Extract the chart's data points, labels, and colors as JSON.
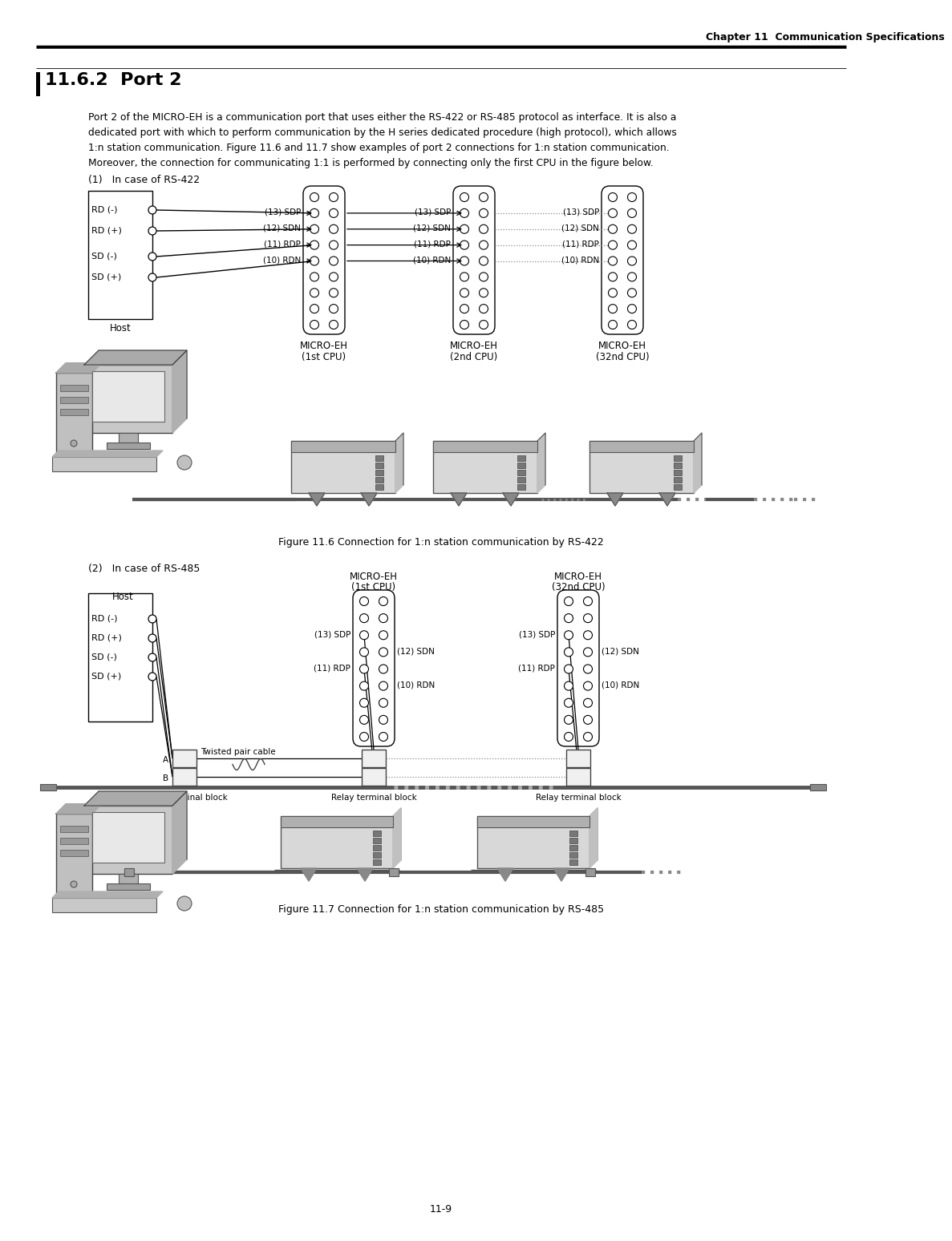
{
  "page_bg": "#ffffff",
  "header_text": "Chapter 11  Communication Specifications",
  "section_title": "11.6.2  Port 2",
  "body_text_lines": [
    "Port 2 of the MICRO-EH is a communication port that uses either the RS-422 or RS-485 protocol as interface. It is also a",
    "dedicated port with which to perform communication by the H series dedicated procedure (high protocol), which allows",
    "1:n station communication. Figure 11.6 and 11.7 show examples of port 2 connections for 1:n station communication.",
    "Moreover, the connection for communicating 1:1 is performed by connecting only the first CPU in the figure below."
  ],
  "fig1_caption": "Figure 11.6 Connection for 1:n station communication by RS-422",
  "fig2_caption": "Figure 11.7 Connection for 1:n station communication by RS-485",
  "page_number": "11-9",
  "subsection1": "(1)   In case of RS-422",
  "subsection2": "(2)   In case of RS-485"
}
